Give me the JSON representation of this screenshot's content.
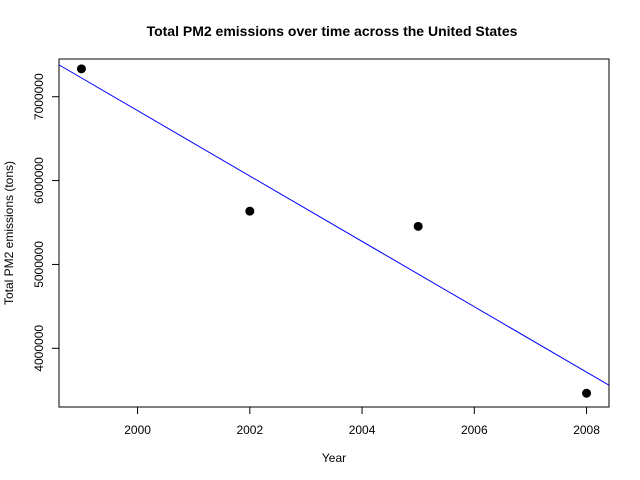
{
  "chart_data": {
    "type": "scatter",
    "title": "Total PM2 emissions over time across the United States",
    "xlabel": "Year",
    "ylabel": "Total PM2 emissions (tons)",
    "xlim": [
      1998.6,
      2008.4
    ],
    "ylim": [
      3300000,
      7450000
    ],
    "xticks": [
      2000,
      2002,
      2004,
      2006,
      2008
    ],
    "yticks": [
      4000000,
      5000000,
      6000000,
      7000000
    ],
    "points": [
      {
        "x": 1999,
        "y": 7332967
      },
      {
        "x": 2002,
        "y": 5635780
      },
      {
        "x": 2005,
        "y": 5454703
      },
      {
        "x": 2008,
        "y": 3464206
      }
    ],
    "point_color": "#000000",
    "trend_line": {
      "color": "#0000ff",
      "endpoints": [
        {
          "x": 1998.6,
          "y": 7380000
        },
        {
          "x": 2008.4,
          "y": 3560000
        }
      ]
    },
    "grid": false,
    "legend": "none"
  }
}
